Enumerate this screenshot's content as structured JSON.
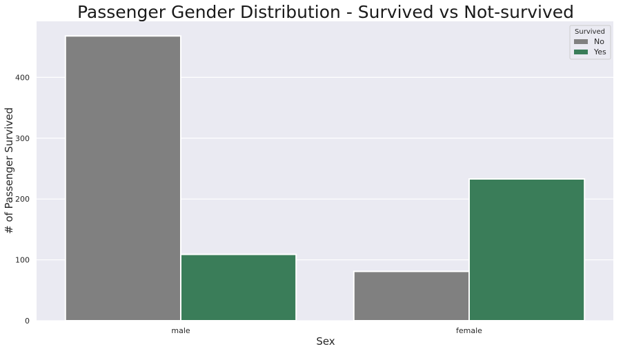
{
  "chart_data": {
    "type": "bar",
    "title": "Passenger Gender Distribution - Survived vs Not-survived",
    "xlabel": "Sex",
    "ylabel": "# of Passenger Survived",
    "categories": [
      "male",
      "female"
    ],
    "series": [
      {
        "name": "No",
        "values": [
          468,
          81
        ],
        "color": "#808080"
      },
      {
        "name": "Yes",
        "values": [
          109,
          233
        ],
        "color": "#3a7d59"
      }
    ],
    "ylim": [
      0,
      492
    ],
    "yticks": [
      0,
      100,
      200,
      300,
      400
    ],
    "legend": {
      "title": "Survived",
      "placement": "top-right"
    },
    "grid": true,
    "background": "#eaeaf2"
  }
}
